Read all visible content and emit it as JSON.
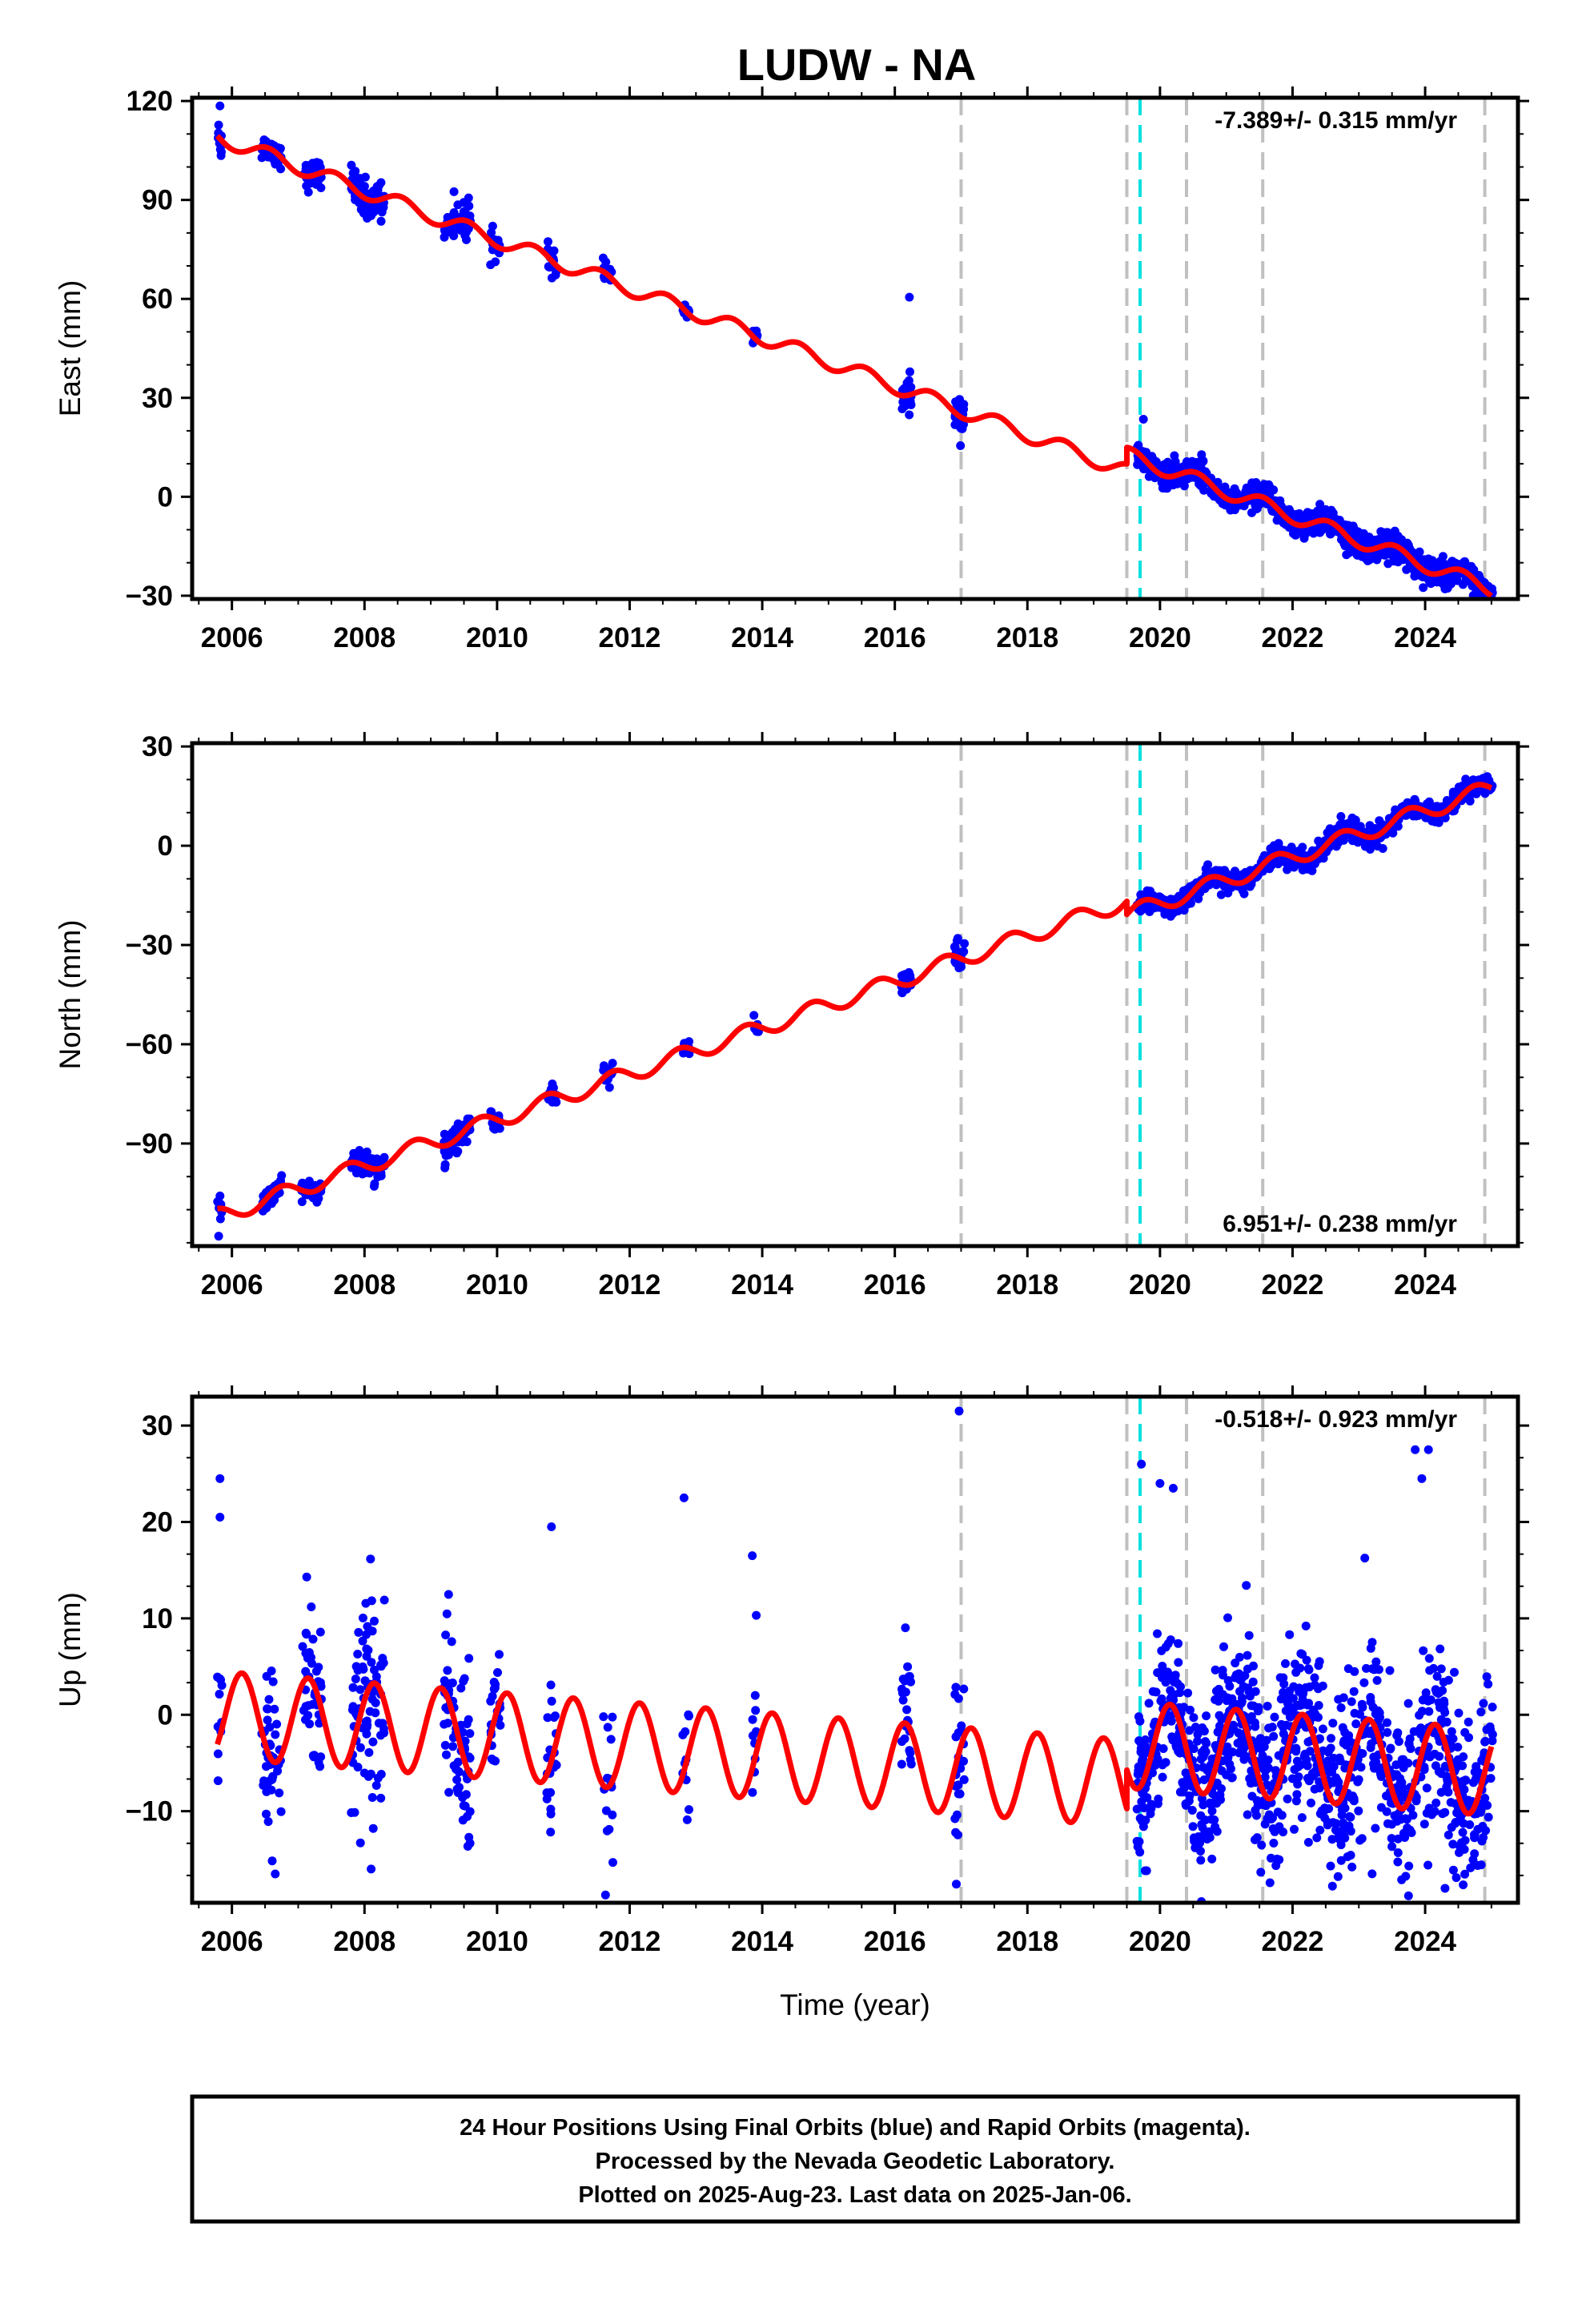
{
  "title": "LUDW - NA",
  "colors": {
    "final_orbits": "#0000ff",
    "model_fit": "#ff0000",
    "event_line": "#c0c0c0",
    "antenna_change_line": "#00e0e0"
  },
  "caption": {
    "line1": "24 Hour Positions Using Final Orbits (blue) and Rapid Orbits (magenta).",
    "line2": "Processed by the Nevada Geodetic Laboratory.",
    "line3": "Plotted on 2025-Aug-23. Last data on 2025-Jan-06."
  },
  "chart_data": [
    {
      "type": "scatter",
      "component": "east",
      "xlabel": "",
      "ylabel": "East (mm)",
      "xlim": [
        2005.4,
        2025.4
      ],
      "ylim": [
        -31,
        121
      ],
      "yticks": [
        -30,
        0,
        30,
        60,
        90,
        120
      ],
      "xticks": [
        2006,
        2008,
        2010,
        2012,
        2014,
        2016,
        2018,
        2020,
        2022,
        2024
      ],
      "rate_label": "-7.389+/- 0.315 mm/yr",
      "rate_label_position": "top-right",
      "event_lines": [
        2017.0,
        2019.5,
        2020.4,
        2021.55,
        2024.9
      ],
      "antenna_lines": [
        2019.7
      ],
      "offsets": [
        {
          "x": 2019.5,
          "dy": 5
        }
      ],
      "model": {
        "intercept": 109,
        "t0": 2005.8,
        "rate": -7.389,
        "amp": 2.3,
        "phase": 0.3
      },
      "observation_clusters": [
        {
          "start": 2005.78,
          "end": 2005.85,
          "count": 10,
          "spread": 3
        },
        {
          "start": 2006.45,
          "end": 2006.75,
          "count": 40,
          "spread": 2
        },
        {
          "start": 2007.05,
          "end": 2007.35,
          "count": 40,
          "spread": 2
        },
        {
          "start": 2007.8,
          "end": 2008.3,
          "count": 70,
          "spread": 3
        },
        {
          "start": 2009.2,
          "end": 2009.6,
          "count": 60,
          "spread": 2.5
        },
        {
          "start": 2009.9,
          "end": 2010.05,
          "count": 20,
          "spread": 2
        },
        {
          "start": 2010.75,
          "end": 2010.9,
          "count": 20,
          "spread": 2
        },
        {
          "start": 2011.6,
          "end": 2011.75,
          "count": 15,
          "spread": 1.5
        },
        {
          "start": 2012.8,
          "end": 2012.9,
          "count": 10,
          "spread": 1.5
        },
        {
          "start": 2013.85,
          "end": 2013.95,
          "count": 10,
          "spread": 2
        },
        {
          "start": 2016.1,
          "end": 2016.25,
          "count": 25,
          "spread": 2.5
        },
        {
          "start": 2016.9,
          "end": 2017.05,
          "count": 25,
          "spread": 3
        },
        {
          "start": 2019.65,
          "end": 2025.02,
          "count": 900,
          "spread": 2
        }
      ],
      "outliers": [
        {
          "x": 2005.82,
          "y": 118.5
        },
        {
          "x": 2016.22,
          "y": 60.5
        },
        {
          "x": 2009.35,
          "y": 92.5
        },
        {
          "x": 2019.75,
          "y": 23.5
        }
      ]
    },
    {
      "type": "scatter",
      "component": "north",
      "xlabel": "",
      "ylabel": "North (mm)",
      "xlim": [
        2005.4,
        2025.4
      ],
      "ylim": [
        -121,
        31
      ],
      "yticks": [
        -90,
        -60,
        -30,
        0,
        30
      ],
      "xticks": [
        2006,
        2008,
        2010,
        2012,
        2014,
        2016,
        2018,
        2020,
        2022,
        2024
      ],
      "rate_label": "6.951+/- 0.238 mm/yr",
      "rate_label_position": "bottom-right",
      "event_lines": [
        2017.0,
        2019.5,
        2020.4,
        2021.55,
        2024.9
      ],
      "antenna_lines": [
        2019.7
      ],
      "offsets": [
        {
          "x": 2019.5,
          "dy": -4
        }
      ],
      "model": {
        "intercept": -112,
        "t0": 2005.8,
        "rate": 6.951,
        "amp": 2.5,
        "phase": 0.5
      },
      "observation_clusters": [
        {
          "start": 2005.78,
          "end": 2005.85,
          "count": 10,
          "spread": 2
        },
        {
          "start": 2006.45,
          "end": 2006.75,
          "count": 40,
          "spread": 1.5
        },
        {
          "start": 2007.05,
          "end": 2007.35,
          "count": 40,
          "spread": 1.5
        },
        {
          "start": 2007.8,
          "end": 2008.3,
          "count": 70,
          "spread": 2
        },
        {
          "start": 2009.2,
          "end": 2009.6,
          "count": 60,
          "spread": 2
        },
        {
          "start": 2009.9,
          "end": 2010.05,
          "count": 20,
          "spread": 1.5
        },
        {
          "start": 2010.75,
          "end": 2010.9,
          "count": 20,
          "spread": 1.5
        },
        {
          "start": 2011.6,
          "end": 2011.75,
          "count": 15,
          "spread": 1.5
        },
        {
          "start": 2012.8,
          "end": 2012.9,
          "count": 10,
          "spread": 1.5
        },
        {
          "start": 2013.85,
          "end": 2013.95,
          "count": 10,
          "spread": 1.5
        },
        {
          "start": 2016.1,
          "end": 2016.25,
          "count": 25,
          "spread": 2
        },
        {
          "start": 2016.9,
          "end": 2017.05,
          "count": 25,
          "spread": 2.5
        },
        {
          "start": 2019.65,
          "end": 2025.02,
          "count": 900,
          "spread": 1.5
        }
      ],
      "outliers": [
        {
          "x": 2005.8,
          "y": -118
        },
        {
          "x": 2016.95,
          "y": -28
        }
      ]
    },
    {
      "type": "scatter",
      "component": "up",
      "xlabel": "Time (year)",
      "ylabel": "Up (mm)",
      "xlim": [
        2005.4,
        2025.4
      ],
      "ylim": [
        -19.5,
        33
      ],
      "yticks": [
        -10,
        0,
        10,
        20,
        30
      ],
      "xticks": [
        2006,
        2008,
        2010,
        2012,
        2014,
        2016,
        2018,
        2020,
        2022,
        2024
      ],
      "rate_label": "-0.518+/- 0.923 mm/yr",
      "rate_label_position": "top-right",
      "event_lines": [
        2017.0,
        2019.5,
        2020.4,
        2021.55,
        2024.9
      ],
      "antenna_lines": [
        2019.7
      ],
      "offsets": [
        {
          "x": 2019.5,
          "dy": 4
        }
      ],
      "model": {
        "intercept": 0,
        "t0": 2005.8,
        "rate": -0.518,
        "amp": 4.5,
        "phase": 0.9
      },
      "observation_clusters": [
        {
          "start": 2005.78,
          "end": 2005.85,
          "count": 12,
          "spread": 4
        },
        {
          "start": 2006.45,
          "end": 2006.75,
          "count": 45,
          "spread": 5
        },
        {
          "start": 2007.05,
          "end": 2007.35,
          "count": 45,
          "spread": 5
        },
        {
          "start": 2007.8,
          "end": 2008.3,
          "count": 80,
          "spread": 5
        },
        {
          "start": 2009.2,
          "end": 2009.6,
          "count": 70,
          "spread": 4.5
        },
        {
          "start": 2009.9,
          "end": 2010.05,
          "count": 20,
          "spread": 4
        },
        {
          "start": 2010.75,
          "end": 2010.9,
          "count": 20,
          "spread": 4
        },
        {
          "start": 2011.6,
          "end": 2011.75,
          "count": 15,
          "spread": 4
        },
        {
          "start": 2012.8,
          "end": 2012.9,
          "count": 10,
          "spread": 4
        },
        {
          "start": 2013.85,
          "end": 2013.95,
          "count": 10,
          "spread": 4
        },
        {
          "start": 2016.1,
          "end": 2016.25,
          "count": 25,
          "spread": 5
        },
        {
          "start": 2016.9,
          "end": 2017.05,
          "count": 25,
          "spread": 5
        },
        {
          "start": 2019.65,
          "end": 2025.02,
          "count": 1000,
          "spread": 4.5
        }
      ],
      "outliers": [
        {
          "x": 2005.82,
          "y": 24.5
        },
        {
          "x": 2005.82,
          "y": 20.5
        },
        {
          "x": 2016.97,
          "y": 31.5
        },
        {
          "x": 2012.82,
          "y": 22.5
        },
        {
          "x": 2010.82,
          "y": 19.5
        },
        {
          "x": 2013.85,
          "y": 16.5
        },
        {
          "x": 2019.72,
          "y": 26
        },
        {
          "x": 2020.0,
          "y": 24
        },
        {
          "x": 2020.2,
          "y": 23.5
        },
        {
          "x": 2023.85,
          "y": 27.5
        },
        {
          "x": 2024.05,
          "y": 27.5
        },
        {
          "x": 2023.95,
          "y": 24.5
        },
        {
          "x": 2008.1,
          "y": -16
        },
        {
          "x": 2024.3,
          "y": -18
        },
        {
          "x": 2023.2,
          "y": -16.5
        }
      ]
    }
  ]
}
